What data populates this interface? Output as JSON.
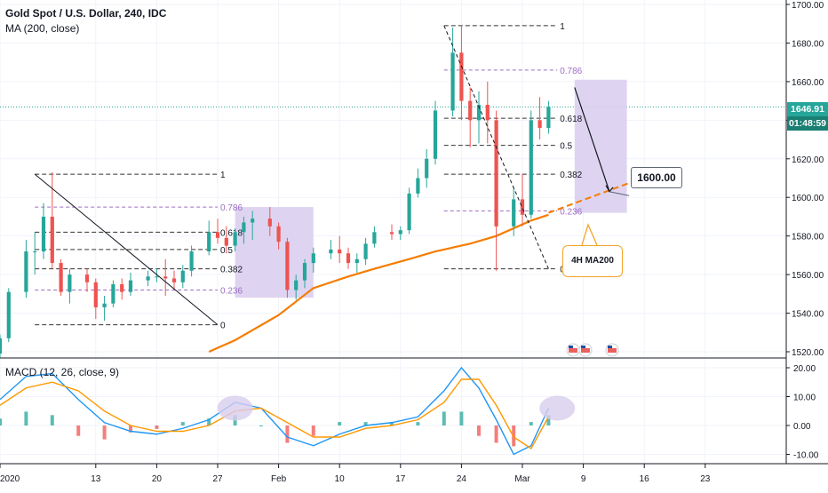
{
  "legend": {
    "symbol": "Gold Spot / U.S. Dollar, 240, IDC",
    "ma": "MA (200, close)",
    "macd": "MACD (12, 26, close, 9)"
  },
  "badges": {
    "price": "1646.91",
    "countdown": "01:48:59"
  },
  "annotations": {
    "target": "1600.00",
    "ma_callout": "4H MA200"
  },
  "colors": {
    "up": "#26a69a",
    "down": "#ef5350",
    "ma": "#f57c00",
    "macd": "#2196f3",
    "signal": "#ff9800",
    "fib": "#000000",
    "fib_alt": "#9c6dc4",
    "zone": "#d8cdee",
    "price_line": "#26a69a",
    "countdown_bg": "#1a7f72"
  },
  "chart_data": [
    {
      "type": "candlestick",
      "title": "Gold Spot / U.S. Dollar, 240, IDC",
      "x_tick_labels": [
        "2020",
        "13",
        "20",
        "27",
        "Feb",
        "10",
        "17",
        "24",
        "Mar",
        "9",
        "16",
        "23"
      ],
      "y_tick_labels": [
        "1700.00",
        "1680.00",
        "1660.00",
        "1640.00",
        "1620.00",
        "1600.00",
        "1580.00",
        "1560.00",
        "1540.00",
        "1520.00"
      ],
      "ylim": [
        1519,
        1701
      ],
      "last_price": 1646.91,
      "ohlc_daily_approx": [
        {
          "date": "2020-01-02",
          "o": 1519,
          "h": 1529,
          "l": 1517,
          "c": 1527
        },
        {
          "date": "2020-01-03",
          "o": 1527,
          "h": 1553,
          "l": 1525,
          "c": 1551
        },
        {
          "date": "2020-01-05",
          "o": 1551,
          "h": 1578,
          "l": 1548,
          "c": 1572
        },
        {
          "date": "2020-01-06",
          "o": 1572,
          "h": 1582,
          "l": 1560,
          "c": 1572
        },
        {
          "date": "2020-01-07",
          "o": 1572,
          "h": 1597,
          "l": 1568,
          "c": 1590
        },
        {
          "date": "2020-01-08",
          "o": 1590,
          "h": 1613,
          "l": 1563,
          "c": 1566
        },
        {
          "date": "2020-01-09",
          "o": 1566,
          "h": 1568,
          "l": 1549,
          "c": 1551
        },
        {
          "date": "2020-01-10",
          "o": 1551,
          "h": 1563,
          "l": 1545,
          "c": 1560
        },
        {
          "date": "2020-01-12",
          "o": 1560,
          "h": 1563,
          "l": 1551,
          "c": 1556
        },
        {
          "date": "2020-01-13",
          "o": 1556,
          "h": 1558,
          "l": 1537,
          "c": 1543
        },
        {
          "date": "2020-01-14",
          "o": 1543,
          "h": 1549,
          "l": 1536,
          "c": 1545
        },
        {
          "date": "2020-01-15",
          "o": 1545,
          "h": 1557,
          "l": 1543,
          "c": 1555
        },
        {
          "date": "2020-01-16",
          "o": 1555,
          "h": 1558,
          "l": 1547,
          "c": 1551
        },
        {
          "date": "2020-01-17",
          "o": 1551,
          "h": 1561,
          "l": 1549,
          "c": 1557
        },
        {
          "date": "2020-01-19",
          "o": 1557,
          "h": 1562,
          "l": 1554,
          "c": 1559
        },
        {
          "date": "2020-01-20",
          "o": 1559,
          "h": 1563,
          "l": 1556,
          "c": 1559
        },
        {
          "date": "2020-01-21",
          "o": 1559,
          "h": 1568,
          "l": 1549,
          "c": 1558
        },
        {
          "date": "2020-01-22",
          "o": 1558,
          "h": 1562,
          "l": 1552,
          "c": 1556
        },
        {
          "date": "2020-01-23",
          "o": 1556,
          "h": 1565,
          "l": 1553,
          "c": 1562
        },
        {
          "date": "2020-01-24",
          "o": 1562,
          "h": 1575,
          "l": 1559,
          "c": 1572
        },
        {
          "date": "2020-01-26",
          "o": 1572,
          "h": 1588,
          "l": 1570,
          "c": 1582
        },
        {
          "date": "2020-01-27",
          "o": 1582,
          "h": 1589,
          "l": 1576,
          "c": 1579
        },
        {
          "date": "2020-01-28",
          "o": 1579,
          "h": 1585,
          "l": 1571,
          "c": 1575
        },
        {
          "date": "2020-01-29",
          "o": 1575,
          "h": 1584,
          "l": 1572,
          "c": 1582
        },
        {
          "date": "2020-01-30",
          "o": 1582,
          "h": 1590,
          "l": 1576,
          "c": 1587
        },
        {
          "date": "2020-01-31",
          "o": 1587,
          "h": 1593,
          "l": 1578,
          "c": 1589
        },
        {
          "date": "2020-02-02",
          "o": 1589,
          "h": 1595,
          "l": 1580,
          "c": 1585
        },
        {
          "date": "2020-02-03",
          "o": 1585,
          "h": 1587,
          "l": 1573,
          "c": 1577
        },
        {
          "date": "2020-02-04",
          "o": 1577,
          "h": 1579,
          "l": 1548,
          "c": 1552
        },
        {
          "date": "2020-02-05",
          "o": 1552,
          "h": 1560,
          "l": 1547,
          "c": 1557
        },
        {
          "date": "2020-02-06",
          "o": 1557,
          "h": 1568,
          "l": 1553,
          "c": 1566
        },
        {
          "date": "2020-02-07",
          "o": 1566,
          "h": 1574,
          "l": 1561,
          "c": 1571
        },
        {
          "date": "2020-02-09",
          "o": 1571,
          "h": 1578,
          "l": 1568,
          "c": 1573
        },
        {
          "date": "2020-02-10",
          "o": 1573,
          "h": 1580,
          "l": 1566,
          "c": 1571
        },
        {
          "date": "2020-02-11",
          "o": 1571,
          "h": 1574,
          "l": 1563,
          "c": 1566
        },
        {
          "date": "2020-02-12",
          "o": 1566,
          "h": 1571,
          "l": 1561,
          "c": 1568
        },
        {
          "date": "2020-02-13",
          "o": 1568,
          "h": 1579,
          "l": 1565,
          "c": 1576
        },
        {
          "date": "2020-02-14",
          "o": 1576,
          "h": 1585,
          "l": 1574,
          "c": 1582
        },
        {
          "date": "2020-02-16",
          "o": 1582,
          "h": 1586,
          "l": 1578,
          "c": 1581
        },
        {
          "date": "2020-02-17",
          "o": 1581,
          "h": 1585,
          "l": 1578,
          "c": 1583
        },
        {
          "date": "2020-02-18",
          "o": 1583,
          "h": 1605,
          "l": 1581,
          "c": 1602
        },
        {
          "date": "2020-02-19",
          "o": 1602,
          "h": 1615,
          "l": 1600,
          "c": 1610
        },
        {
          "date": "2020-02-20",
          "o": 1610,
          "h": 1625,
          "l": 1605,
          "c": 1620
        },
        {
          "date": "2020-02-21",
          "o": 1620,
          "h": 1650,
          "l": 1617,
          "c": 1645
        },
        {
          "date": "2020-02-23",
          "o": 1645,
          "h": 1688,
          "l": 1642,
          "c": 1675
        },
        {
          "date": "2020-02-24",
          "o": 1675,
          "h": 1689,
          "l": 1640,
          "c": 1650
        },
        {
          "date": "2020-02-25",
          "o": 1650,
          "h": 1657,
          "l": 1626,
          "c": 1640
        },
        {
          "date": "2020-02-26",
          "o": 1640,
          "h": 1655,
          "l": 1628,
          "c": 1648
        },
        {
          "date": "2020-02-27",
          "o": 1648,
          "h": 1660,
          "l": 1628,
          "c": 1640
        },
        {
          "date": "2020-02-28",
          "o": 1640,
          "h": 1645,
          "l": 1562,
          "c": 1585
        },
        {
          "date": "2020-03-01",
          "o": 1585,
          "h": 1605,
          "l": 1580,
          "c": 1599
        },
        {
          "date": "2020-03-02",
          "o": 1599,
          "h": 1612,
          "l": 1585,
          "c": 1591
        },
        {
          "date": "2020-03-03",
          "o": 1591,
          "h": 1645,
          "l": 1589,
          "c": 1640
        },
        {
          "date": "2020-03-04",
          "o": 1640,
          "h": 1652,
          "l": 1630,
          "c": 1636
        },
        {
          "date": "2020-03-05",
          "o": 1636,
          "h": 1650,
          "l": 1633,
          "c": 1646.91
        }
      ],
      "ma200": [
        {
          "date": "2020-01-26",
          "v": 1520
        },
        {
          "date": "2020-01-29",
          "v": 1526
        },
        {
          "date": "2020-02-03",
          "v": 1539
        },
        {
          "date": "2020-02-07",
          "v": 1553
        },
        {
          "date": "2020-02-11",
          "v": 1559
        },
        {
          "date": "2020-02-14",
          "v": 1563
        },
        {
          "date": "2020-02-18",
          "v": 1568
        },
        {
          "date": "2020-02-21",
          "v": 1572
        },
        {
          "date": "2020-02-25",
          "v": 1576
        },
        {
          "date": "2020-02-28",
          "v": 1580
        },
        {
          "date": "2020-03-03",
          "v": 1588
        },
        {
          "date": "2020-03-05",
          "v": 1591
        }
      ],
      "ma200_projection": [
        {
          "date": "2020-03-05",
          "v": 1592
        },
        {
          "date": "2020-03-17",
          "v": 1612
        }
      ],
      "fib_retracements": [
        {
          "levels": [
            {
              "label": "1",
              "price": 1612
            },
            {
              "label": "0.786",
              "price": 1595
            },
            {
              "label": "0.618",
              "price": 1582
            },
            {
              "label": "0.5",
              "price": 1573
            },
            {
              "label": "0.382",
              "price": 1563
            },
            {
              "label": "0.236",
              "price": 1552
            },
            {
              "label": "0",
              "price": 1534
            }
          ]
        },
        {
          "levels": [
            {
              "label": "1",
              "price": 1689
            },
            {
              "label": "0.786",
              "price": 1666
            },
            {
              "label": "0.618",
              "price": 1641
            },
            {
              "label": "0.5",
              "price": 1627
            },
            {
              "label": "0.382",
              "price": 1612
            },
            {
              "label": "0.236",
              "price": 1593
            },
            {
              "label": "0",
              "price": 1563
            }
          ]
        }
      ],
      "target_price": 1600.0
    },
    {
      "type": "line",
      "title": "MACD (12, 26, close, 9)",
      "y_tick_labels": [
        "20.00",
        "10.00",
        "0.00",
        "-10.00"
      ],
      "ylim": [
        -14,
        22
      ],
      "dates": [
        "2020-01-02",
        "2020-01-05",
        "2020-01-08",
        "2020-01-11",
        "2020-01-14",
        "2020-01-17",
        "2020-01-20",
        "2020-01-23",
        "2020-01-26",
        "2020-01-29",
        "2020-02-01",
        "2020-02-04",
        "2020-02-07",
        "2020-02-10",
        "2020-02-13",
        "2020-02-16",
        "2020-02-19",
        "2020-02-22",
        "2020-02-24",
        "2020-02-26",
        "2020-02-28",
        "2020-03-01",
        "2020-03-03",
        "2020-03-05"
      ],
      "series": [
        {
          "name": "MACD",
          "values": [
            9,
            17,
            18,
            9,
            1,
            -2,
            -3,
            -1,
            2,
            8,
            6,
            -4,
            -7,
            -3,
            0,
            1,
            3,
            12,
            20,
            13,
            2,
            -10,
            -7,
            6
          ]
        },
        {
          "name": "Signal",
          "values": [
            7,
            13,
            15,
            12,
            5,
            0,
            -2,
            -2,
            0,
            5,
            6,
            1,
            -4,
            -4,
            -1,
            0,
            2,
            8,
            16,
            16,
            7,
            -4,
            -8,
            3
          ]
        }
      ]
    }
  ]
}
